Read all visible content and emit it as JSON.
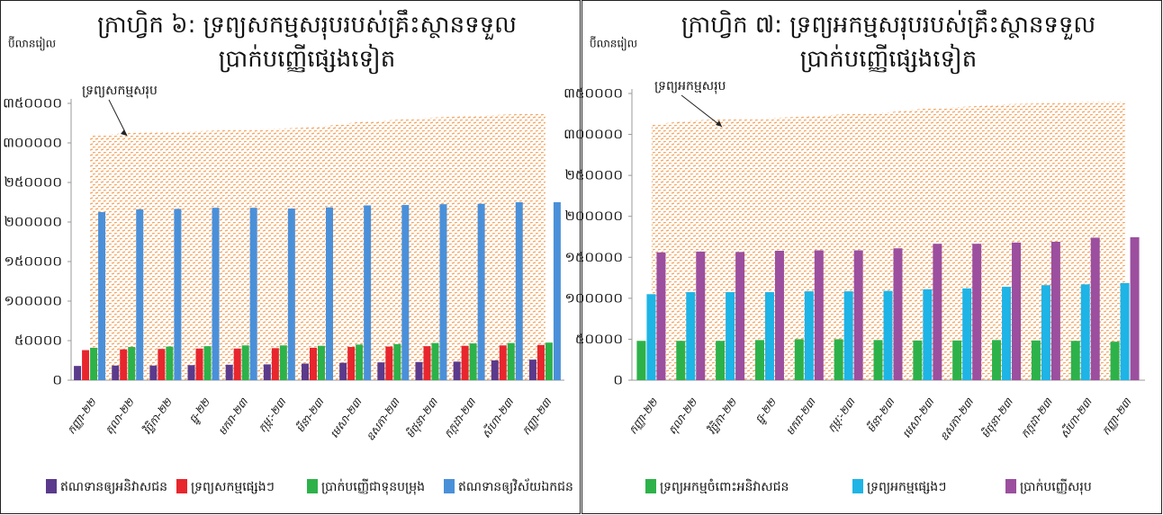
{
  "chart_data": [
    {
      "type": "bar",
      "title": "ក្រាហ្វិក ៦: ទ្រព្យសកម្មសរុបរបស់គ្រឹះស្ថានទទួលប្រាក់បញ្ញើផ្សេងទៀត",
      "ylabel": "ប៊ីលានរៀល",
      "annotation": "ទ្រព្យសកម្មសរុប",
      "categories": [
        "កញ្ញា-២២",
        "តុលា-២២",
        "វិច្ឆិកា-២២",
        "ធ្នូ-២២",
        "មករា-២៣",
        "កុម្ភៈ-២៣",
        "មីនា-២៣",
        "មេសា-២៣",
        "ឧសភា-២៣",
        "មិថុនា-២៣",
        "កក្កដា-២៣",
        "សីហា-២៣",
        "កញ្ញា-២៣"
      ],
      "ylim": [
        0,
        350000
      ],
      "yticks": [
        {
          "value": 0,
          "label": "០"
        },
        {
          "value": 50000,
          "label": "៥០០០០"
        },
        {
          "value": 100000,
          "label": "១០០០០០"
        },
        {
          "value": 150000,
          "label": "១៥០០០០"
        },
        {
          "value": 200000,
          "label": "២០០០០០"
        },
        {
          "value": 250000,
          "label": "២៥០០០០"
        },
        {
          "value": 300000,
          "label": "៣០០០០០"
        },
        {
          "value": 350000,
          "label": "៣៥០០០០"
        }
      ],
      "area": {
        "color": "#f4a460",
        "values": [
          309000,
          312500,
          313500,
          315000,
          317000,
          318000,
          320000,
          326000,
          329000,
          332000,
          334000,
          336000,
          337500
        ]
      },
      "series": [
        {
          "name": "ឥណទានឲ្យអនិវាសជន",
          "color": "#5b3a8c",
          "values": [
            18000,
            18500,
            18500,
            19000,
            19500,
            20000,
            21000,
            22000,
            22500,
            23000,
            23500,
            25000,
            26000
          ]
        },
        {
          "name": "ទ្រព្យសកម្មផ្សេងៗ",
          "color": "#e8262d",
          "values": [
            38000,
            39000,
            39500,
            40000,
            40000,
            40500,
            41000,
            42000,
            42500,
            43000,
            43500,
            44000,
            44500
          ]
        },
        {
          "name": "ប្រាក់បញ្ញើជាទុនបម្រុង",
          "color": "#2db24a",
          "values": [
            41000,
            42000,
            42500,
            43000,
            44000,
            44000,
            43500,
            45000,
            45500,
            47000,
            46500,
            47000,
            47500
          ]
        },
        {
          "name": "ឥណទានឲ្យវិស័យឯកជន",
          "color": "#4a90d9",
          "values": [
            212500,
            216000,
            216500,
            218000,
            218000,
            217000,
            218500,
            221000,
            221500,
            222500,
            223000,
            225000,
            225000
          ]
        }
      ]
    },
    {
      "type": "bar",
      "title": "ក្រាហ្វិក ៧: ទ្រព្យអកម្មសរុបរបស់គ្រឹះស្ថានទទួលប្រាក់បញ្ញើផ្សេងទៀត",
      "ylabel": "ប៊ីលានរៀល",
      "annotation": "ទ្រព្យអកម្មសរុប",
      "categories": [
        "កញ្ញា-២២",
        "តុលា-២២",
        "វិច្ឆិកា-២២",
        "ធ្នូ-២២",
        "មករា-២៣",
        "កុម្ភៈ-២៣",
        "មីនា-២៣",
        "មេសា-២៣",
        "ឧសភា-២៣",
        "មិថុនា-២៣",
        "កក្កដា-២៣",
        "សីហា-២៣",
        "កញ្ញា-២៣"
      ],
      "ylim": [
        0,
        350000
      ],
      "yticks": [
        {
          "value": 0,
          "label": "០"
        },
        {
          "value": 50000,
          "label": "៥០០០០"
        },
        {
          "value": 100000,
          "label": "១០០០០០"
        },
        {
          "value": 150000,
          "label": "១៥០០០០"
        },
        {
          "value": 200000,
          "label": "២០០០០០"
        },
        {
          "value": 250000,
          "label": "២៥០០០០"
        },
        {
          "value": 300000,
          "label": "៣០០០០០"
        },
        {
          "value": 350000,
          "label": "៣៥០០០០"
        }
      ],
      "area": {
        "color": "#f4a460",
        "values": [
          312000,
          317000,
          319000,
          320000,
          322000,
          325000,
          327000,
          332000,
          334000,
          337000,
          338000,
          340000,
          340000
        ]
      },
      "series": [
        {
          "name": "ទ្រព្យអកម្មចំពោះអនិវាសជន",
          "color": "#2db24a",
          "values": [
            48000,
            48000,
            48000,
            49000,
            50000,
            50000,
            49000,
            48500,
            48500,
            49000,
            48500,
            48000,
            47000
          ]
        },
        {
          "name": "ទ្រព្យអកម្មផ្សេងៗ",
          "color": "#1eb4e6",
          "values": [
            105000,
            107500,
            107500,
            107500,
            108500,
            108500,
            109000,
            111000,
            112000,
            114000,
            116000,
            117000,
            118500
          ]
        },
        {
          "name": "ប្រាក់បញ្ញើសរុប",
          "color": "#9b4f9e",
          "values": [
            156000,
            157000,
            156500,
            158000,
            158500,
            158500,
            161000,
            166500,
            166500,
            168000,
            169000,
            174000,
            174500
          ]
        }
      ]
    }
  ]
}
